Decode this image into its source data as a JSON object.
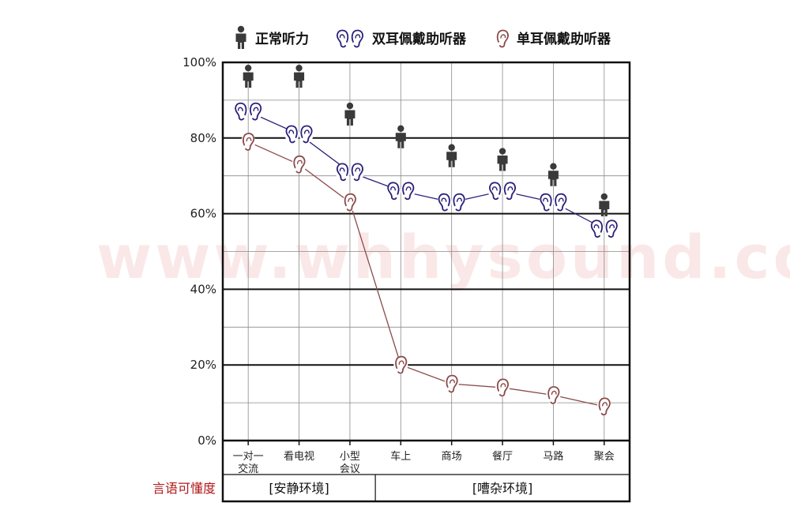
{
  "watermark": "www.whhysound.com",
  "chart_data": {
    "type": "line",
    "ylabel": "言语可懂度",
    "ylim": [
      0,
      100
    ],
    "yticks": [
      "0%",
      "20%",
      "40%",
      "60%",
      "80%",
      "100%"
    ],
    "categories": [
      "一对一\n交流",
      "看电视",
      "小型\n会议",
      "车上",
      "商场",
      "餐厅",
      "马路",
      "聚会"
    ],
    "groups": [
      {
        "label": "[安静环境]",
        "span": [
          0,
          2
        ]
      },
      {
        "label": "[嘈杂环境]",
        "span": [
          3,
          7
        ]
      }
    ],
    "legend": [
      "正常听力",
      "双耳佩戴助听器",
      "单耳佩戴助听器"
    ],
    "legend_position": "top",
    "series": [
      {
        "name": "正常听力",
        "marker": "person-icon",
        "color": "#3a3a3a",
        "values": [
          96,
          96,
          86,
          80,
          75,
          74,
          70,
          62
        ],
        "line": false
      },
      {
        "name": "双耳佩戴助听器",
        "marker": "binaural-ear-icon",
        "color": "#2a1f7a",
        "values": [
          87,
          81,
          71,
          66,
          63,
          66,
          63,
          56
        ],
        "line": true
      },
      {
        "name": "单耳佩戴助听器",
        "marker": "single-ear-icon",
        "color": "#8a4a4a",
        "values": [
          79,
          73,
          63,
          20,
          15,
          14,
          12,
          9
        ],
        "line": true
      }
    ]
  }
}
